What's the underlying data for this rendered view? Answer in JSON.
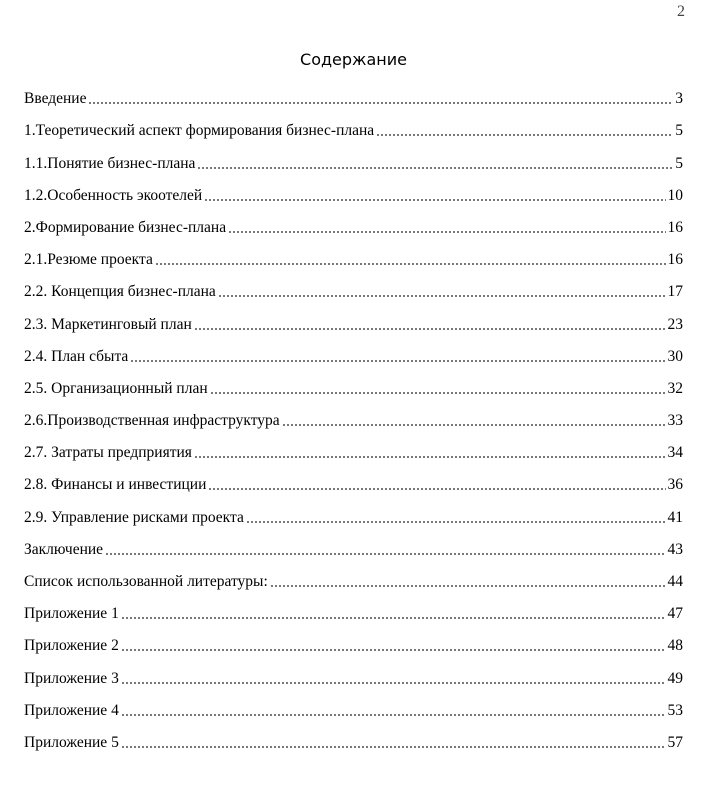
{
  "page_number": "2",
  "title": "Содержание",
  "entries": [
    {
      "text": "Введение",
      "page": "3"
    },
    {
      "text": "1.Теоретический аспект формирования бизнес-плана",
      "page": "5"
    },
    {
      "text": "1.1.Понятие бизнес-плана",
      "page": "5"
    },
    {
      "text": "1.2.Особенность экоотелей",
      "page": "10"
    },
    {
      "text": "2.Формирование бизнес-плана",
      "page": "16"
    },
    {
      "text": "2.1.Резюме проекта",
      "page": "16"
    },
    {
      "text": "2.2. Концепция бизнес-плана",
      "page": "17"
    },
    {
      "text": "2.3. Маркетинговый план",
      "page": "23"
    },
    {
      "text": "2.4. План сбыта",
      "page": "30"
    },
    {
      "text": "2.5. Организационный план",
      "page": "32"
    },
    {
      "text": "2.6.Производственная инфраструктура",
      "page": "33"
    },
    {
      "text": "2.7. Затраты предприятия",
      "page": "34"
    },
    {
      "text": "2.8. Финансы и инвестиции",
      "page": "36"
    },
    {
      "text": "2.9. Управление рисками проекта",
      "page": "41"
    },
    {
      "text": "Заключение",
      "page": "43"
    },
    {
      "text": "Список использованной литературы:",
      "page": "44"
    },
    {
      "text": "Приложение 1",
      "page": "47"
    },
    {
      "text": "Приложение 2",
      "page": "48"
    },
    {
      "text": "Приложение 3",
      "page": "49"
    },
    {
      "text": "Приложение 4",
      "page": "53"
    },
    {
      "text": "Приложение 5",
      "page": "57"
    }
  ]
}
